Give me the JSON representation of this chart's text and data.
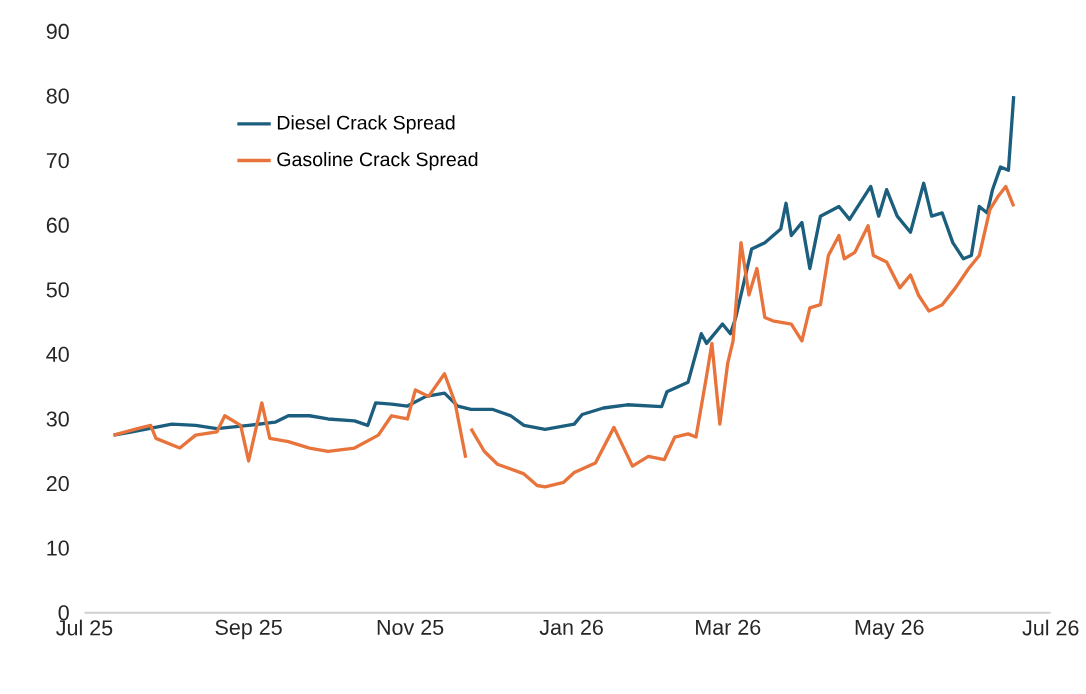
{
  "chart_data": {
    "type": "line",
    "legend": "top left",
    "xlim": [
      "2025-07-01",
      "2026-07-01"
    ],
    "xticks": [
      {
        "value": "2025-07-01",
        "label": "Jul 25"
      },
      {
        "value": "2025-09-01",
        "label": "Sep 25"
      },
      {
        "value": "2025-11-01",
        "label": "Nov 25"
      },
      {
        "value": "2026-01-01",
        "label": "Jan 26"
      },
      {
        "value": "2026-03-01",
        "label": "Mar 26"
      },
      {
        "value": "2026-05-01",
        "label": "May 26"
      },
      {
        "value": "2026-07-01",
        "label": "Jul 26"
      }
    ],
    "ylim": [
      0,
      90
    ],
    "yticks": [
      0,
      10,
      20,
      30,
      40,
      50,
      60,
      70,
      80,
      90
    ],
    "series": [
      {
        "name": "Diesel Crack Spread",
        "color": "#1b5e7e",
        "x": [
          "2025-07-12",
          "2025-07-19",
          "2025-08-03",
          "2025-08-12",
          "2025-08-20",
          "2025-09-01",
          "2025-09-11",
          "2025-09-16",
          "2025-09-24",
          "2025-10-01",
          "2025-10-11",
          "2025-10-16",
          "2025-10-19",
          "2025-10-25",
          "2025-10-31",
          "2025-11-07",
          "2025-11-14",
          "2025-11-19",
          "2025-11-24",
          "2025-12-02",
          "2025-12-09",
          "2025-12-14",
          "2025-12-22",
          "2026-01-02",
          "2026-01-05",
          "2026-01-13",
          "2026-01-22",
          "2026-02-04",
          "2026-02-06",
          "2026-02-14",
          "2026-02-19",
          "2026-02-21",
          "2026-02-27",
          "2026-03-02",
          "2026-03-04",
          "2026-03-10",
          "2026-03-15",
          "2026-03-21",
          "2026-03-23",
          "2026-03-25",
          "2026-03-29",
          "2026-04-01",
          "2026-04-05",
          "2026-04-12",
          "2026-04-16",
          "2026-04-24",
          "2026-04-27",
          "2026-04-30",
          "2026-05-04",
          "2026-05-09",
          "2026-05-14",
          "2026-05-17",
          "2026-05-21",
          "2026-05-25",
          "2026-05-29",
          "2026-06-01",
          "2026-06-04",
          "2026-06-07",
          "2026-06-09",
          "2026-06-12",
          "2026-06-15",
          "2026-06-17"
        ],
        "values": [
          27.5,
          28,
          29.2,
          29,
          28.5,
          29,
          29.5,
          30.5,
          30.5,
          30,
          29.7,
          29,
          32.5,
          32.3,
          32,
          33.5,
          34,
          32,
          31.5,
          31.5,
          30.5,
          29,
          28.4,
          29.2,
          30.7,
          31.7,
          32.2,
          31.9,
          34.2,
          35.7,
          43.2,
          41.7,
          44.7,
          43.2,
          45.7,
          56.3,
          57.3,
          59.4,
          63.4,
          58.4,
          60.4,
          53.3,
          61.4,
          62.9,
          60.9,
          66,
          61.4,
          65.5,
          61.4,
          58.9,
          66.5,
          61.4,
          61.9,
          57.3,
          54.8,
          55.3,
          62.9,
          61.9,
          65.5,
          69,
          68.5,
          80
        ]
      },
      {
        "name": "Gasoline Crack Spread",
        "color": "#e8743b",
        "x": [
          "2025-07-12",
          "2025-07-21",
          "2025-07-26",
          "2025-07-28",
          "2025-08-06",
          "2025-08-12",
          "2025-08-20",
          "2025-08-23",
          "2025-08-29",
          "2025-09-01",
          "2025-09-06",
          "2025-09-09",
          "2025-09-16",
          "2025-09-24",
          "2025-10-01",
          "2025-10-11",
          "2025-10-20",
          "2025-10-25",
          "2025-10-31",
          "2025-11-03",
          "2025-11-08",
          "2025-11-14",
          "2025-11-18",
          "2025-11-22",
          "2025-11-23",
          "2025-11-24",
          "2025-11-29",
          "2025-12-04",
          "2025-12-14",
          "2025-12-19",
          "2025-12-22",
          "2025-12-29",
          "2026-01-02",
          "2026-01-10",
          "2026-01-17",
          "2026-01-24",
          "2026-01-30",
          "2026-02-05",
          "2026-02-09",
          "2026-02-14",
          "2026-02-17",
          "2026-02-21",
          "2026-02-23",
          "2026-02-26",
          "2026-03-01",
          "2026-03-03",
          "2026-03-06",
          "2026-03-09",
          "2026-03-12",
          "2026-03-15",
          "2026-03-18",
          "2026-03-25",
          "2026-03-29",
          "2026-04-01",
          "2026-04-05",
          "2026-04-08",
          "2026-04-12",
          "2026-04-14",
          "2026-04-18",
          "2026-04-23",
          "2026-04-25",
          "2026-04-30",
          "2026-05-05",
          "2026-05-09",
          "2026-05-12",
          "2026-05-16",
          "2026-05-21",
          "2026-05-26",
          "2026-05-31",
          "2026-06-04",
          "2026-06-08",
          "2026-06-11",
          "2026-06-14",
          "2026-06-17"
        ],
        "values": [
          27.5,
          28.5,
          29,
          27,
          25.5,
          27.5,
          28,
          30.5,
          29,
          23.5,
          32.5,
          27,
          26.5,
          25.5,
          25,
          25.5,
          27.5,
          30.5,
          30,
          34.5,
          33.5,
          37,
          32.5,
          24,
          null,
          28.5,
          25,
          23,
          21.5,
          19.7,
          19.5,
          20.2,
          21.7,
          23.2,
          28.7,
          22.7,
          24.2,
          23.7,
          27.2,
          27.7,
          27.2,
          36.7,
          41.7,
          29.2,
          38.7,
          42.1,
          57.3,
          49.2,
          53.3,
          45.7,
          45.2,
          44.7,
          42.1,
          47.2,
          47.7,
          55.3,
          58.4,
          54.8,
          55.8,
          59.9,
          55.3,
          54.3,
          50.3,
          52.3,
          49.2,
          46.7,
          47.7,
          50.3,
          53.3,
          55.3,
          62.4,
          64.4,
          66,
          62.9
        ]
      }
    ]
  }
}
